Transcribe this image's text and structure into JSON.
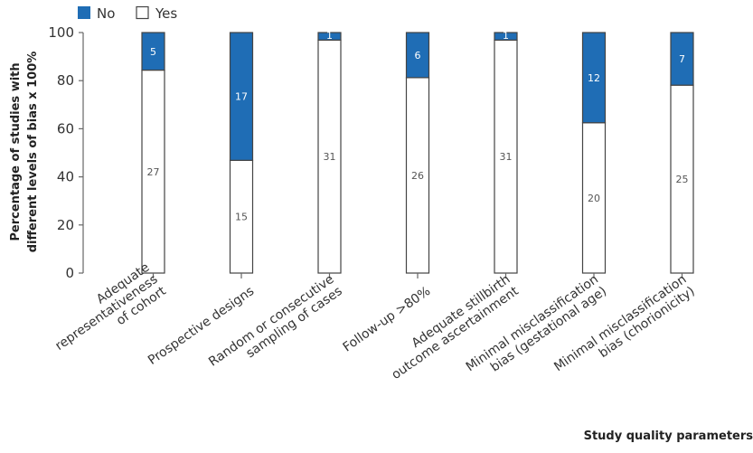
{
  "legend": {
    "no_label": "No",
    "yes_label": "Yes"
  },
  "colors": {
    "no": "#1f6db5",
    "yes": "#ffffff",
    "bar_stroke": "#444444",
    "axis": "#666666",
    "no_label_text": "#ffffff",
    "yes_label_text": "#555555"
  },
  "chart_data": {
    "type": "bar",
    "stacked": true,
    "orientation": "vertical",
    "title": "",
    "xlabel": "Study quality parameters",
    "ylabel_line1": "Percentage of studies with",
    "ylabel_line2": "different levels of bias x 100%",
    "ylim": [
      0,
      100
    ],
    "yticks": [
      0,
      20,
      40,
      60,
      80,
      100
    ],
    "grid": false,
    "legend_position": "top-left",
    "categories": [
      [
        "Adequate",
        "representativeness",
        "of cohort"
      ],
      [
        "Prospective designs"
      ],
      [
        "Random or consecutive",
        "sampling of cases"
      ],
      [
        "Follow-up >80%"
      ],
      [
        "Adequate stillbirth",
        "outcome ascertainment"
      ],
      [
        "Minimal misclassification",
        "bias (gestational age)"
      ],
      [
        "Minimal misclassification",
        "bias (chorionicity)"
      ]
    ],
    "series": [
      {
        "name": "Yes",
        "counts": [
          27,
          15,
          31,
          26,
          31,
          20,
          25
        ]
      },
      {
        "name": "No",
        "counts": [
          5,
          17,
          1,
          6,
          1,
          12,
          7
        ]
      }
    ]
  }
}
